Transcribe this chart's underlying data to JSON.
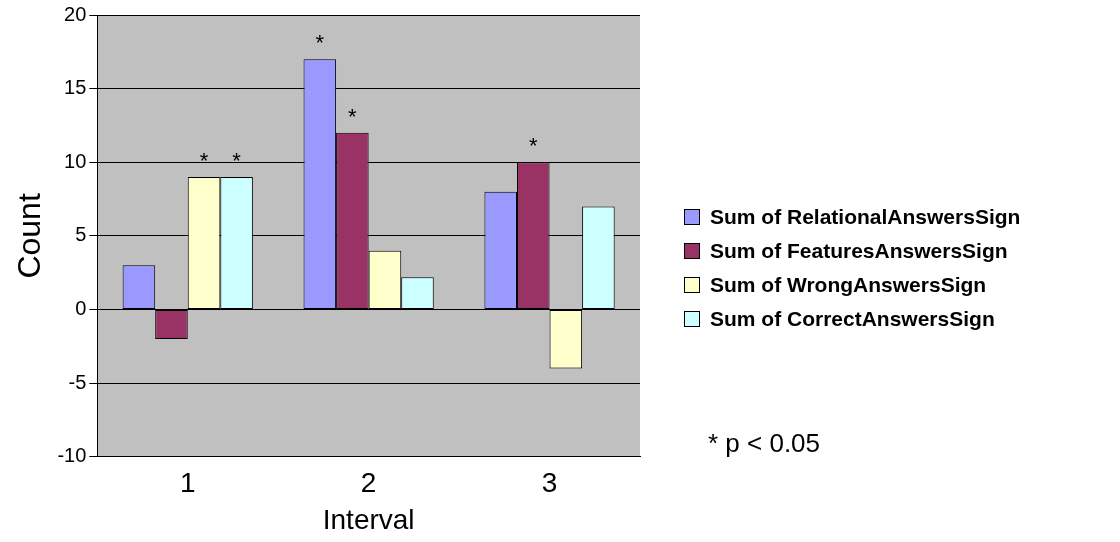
{
  "chart_data": {
    "type": "bar",
    "xlabel": "Interval",
    "ylabel": "Count",
    "categories": [
      "1",
      "2",
      "3"
    ],
    "series": [
      {
        "name": "Sum of RelationalAnswersSign",
        "color": "#9999ff",
        "values": [
          3,
          17,
          8
        ],
        "value_labels": [
          null,
          "*",
          null
        ]
      },
      {
        "name": "Sum of FeaturesAnswersSign",
        "color": "#993366",
        "values": [
          -2,
          12,
          10
        ],
        "value_labels": [
          null,
          "*",
          "*"
        ]
      },
      {
        "name": "Sum of WrongAnswersSign",
        "color": "#ffffcc",
        "values": [
          9,
          4,
          -4
        ],
        "value_labels": [
          "*",
          null,
          null
        ]
      },
      {
        "name": "Sum of CorrectAnswersSign",
        "color": "#ccffff",
        "values": [
          9,
          2.2,
          7
        ],
        "value_labels": [
          "*",
          null,
          null
        ]
      }
    ],
    "ylim": [
      -10,
      20
    ],
    "yticks": [
      -10,
      -5,
      0,
      5,
      10,
      15,
      20
    ],
    "grid": "y",
    "legend": "right",
    "annotations": [
      "* p < 0.05"
    ]
  }
}
